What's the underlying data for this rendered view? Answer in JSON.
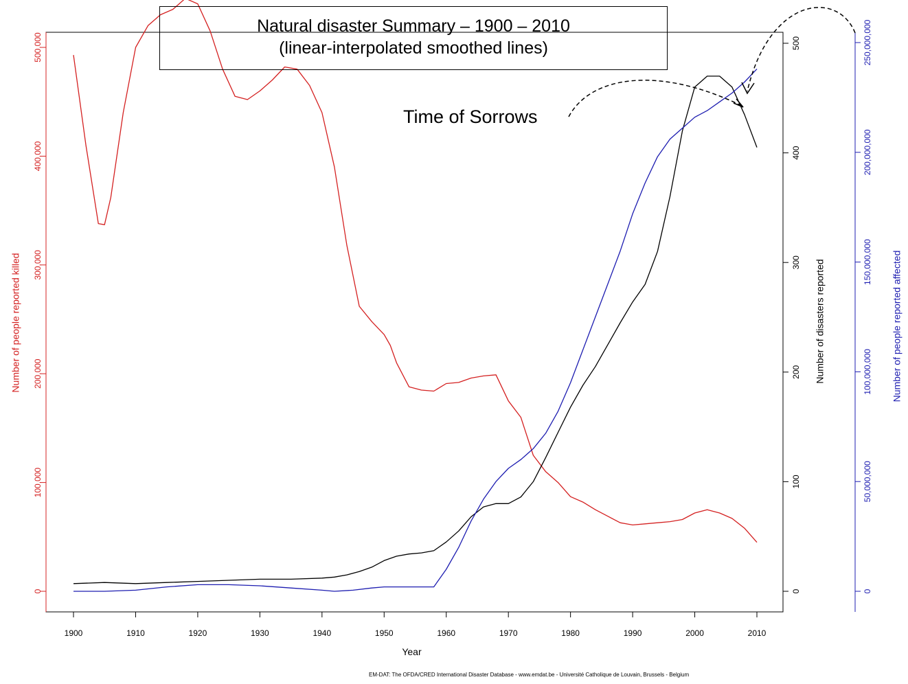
{
  "chart_data": {
    "type": "line",
    "title": "Natural disaster Summary – 1900 – 2010",
    "subtitle": "(linear-interpolated smoothed lines)",
    "xlabel": "Year",
    "xlim": [
      1900,
      2010
    ],
    "x_ticks": [
      "1900",
      "1910",
      "1920",
      "1930",
      "1940",
      "1950",
      "1960",
      "1970",
      "1980",
      "1990",
      "2000",
      "2010"
    ],
    "annotation": "Time of Sorrows",
    "source": "EM-DAT: The OFDA/CRED International Disaster Database - www.emdat.be - Université Catholique de Louvain, Brussels - Belgium",
    "grid": false,
    "colors": {
      "killed": "#d42020",
      "reported": "#000000",
      "affected": "#1c1cb0"
    },
    "axes": {
      "killed": {
        "label": "Number of people reported killed",
        "ylim": [
          0,
          600000
        ],
        "ticks": [
          "0",
          "100,000",
          "200,000",
          "300,000",
          "400,000",
          "500,000"
        ]
      },
      "reported": {
        "label": "Number of disasters reported",
        "ylim": [
          0,
          500
        ],
        "ticks": [
          "0",
          "100",
          "200",
          "300",
          "400",
          "500"
        ]
      },
      "affected": {
        "label": "Number of people reported affected",
        "ylim": [
          0,
          250000000
        ],
        "ticks": [
          "0",
          "50,000,000",
          "100,000,000",
          "150,000,000",
          "200,000,000",
          "250,000,000"
        ]
      }
    },
    "series": [
      {
        "key": "killed",
        "axis": "killed",
        "x": [
          1900,
          1902,
          1904,
          1905,
          1906,
          1908,
          1910,
          1912,
          1914,
          1916,
          1918,
          1920,
          1922,
          1924,
          1926,
          1928,
          1930,
          1932,
          1934,
          1936,
          1938,
          1940,
          1942,
          1944,
          1946,
          1948,
          1950,
          1951,
          1952,
          1954,
          1956,
          1958,
          1960,
          1962,
          1964,
          1966,
          1968,
          1970,
          1972,
          1974,
          1976,
          1978,
          1980,
          1982,
          1984,
          1986,
          1988,
          1990,
          1992,
          1994,
          1996,
          1998,
          2000,
          2002,
          2004,
          2006,
          2008,
          2010
        ],
        "y": [
          493000,
          410000,
          338000,
          337000,
          362000,
          440000,
          500000,
          520000,
          530000,
          535000,
          545000,
          540000,
          515000,
          480000,
          455000,
          452000,
          460000,
          470000,
          482000,
          480000,
          465000,
          440000,
          390000,
          318000,
          262000,
          248000,
          236000,
          226000,
          210000,
          188000,
          185000,
          184000,
          191000,
          192000,
          196000,
          198000,
          199000,
          175000,
          160000,
          125000,
          110000,
          100000,
          87000,
          82000,
          75000,
          69000,
          63000,
          61000,
          62000,
          63000,
          64000,
          66000,
          72000,
          75000,
          72000,
          67000,
          58000,
          45000
        ]
      },
      {
        "key": "reported",
        "axis": "reported",
        "x": [
          1900,
          1905,
          1910,
          1915,
          1920,
          1925,
          1930,
          1935,
          1940,
          1942,
          1944,
          1946,
          1948,
          1950,
          1952,
          1954,
          1956,
          1958,
          1960,
          1962,
          1964,
          1966,
          1968,
          1970,
          1972,
          1974,
          1976,
          1978,
          1980,
          1982,
          1984,
          1986,
          1988,
          1990,
          1992,
          1994,
          1996,
          1998,
          2000,
          2002,
          2004,
          2006,
          2008,
          2010
        ],
        "y": [
          7,
          8,
          7,
          8,
          9,
          10,
          11,
          11,
          12,
          13,
          15,
          18,
          22,
          28,
          32,
          34,
          35,
          37,
          45,
          55,
          68,
          77,
          80,
          80,
          86,
          100,
          122,
          145,
          168,
          188,
          205,
          225,
          245,
          264,
          280,
          310,
          360,
          420,
          460,
          470,
          470,
          460,
          435,
          405
        ]
      },
      {
        "key": "affected",
        "axis": "affected",
        "x": [
          1900,
          1905,
          1910,
          1915,
          1920,
          1925,
          1930,
          1935,
          1940,
          1942,
          1945,
          1948,
          1950,
          1952,
          1955,
          1958,
          1960,
          1962,
          1964,
          1966,
          1968,
          1970,
          1972,
          1974,
          1976,
          1978,
          1980,
          1982,
          1984,
          1986,
          1988,
          1990,
          1992,
          1994,
          1996,
          1998,
          2000,
          2002,
          2004,
          2006,
          2008,
          2010
        ],
        "y": [
          0,
          0,
          500000,
          2000000,
          3000000,
          3000000,
          2500000,
          1500000,
          500000,
          0,
          500000,
          1500000,
          2000000,
          2000000,
          2000000,
          2000000,
          10000000,
          20000000,
          32000000,
          42000000,
          50000000,
          56000000,
          60000000,
          65000000,
          72000000,
          82000000,
          95000000,
          110000000,
          125000000,
          140000000,
          155000000,
          172000000,
          186000000,
          198000000,
          206000000,
          211000000,
          216000000,
          219000000,
          223000000,
          227000000,
          232000000,
          238000000
        ]
      }
    ]
  }
}
